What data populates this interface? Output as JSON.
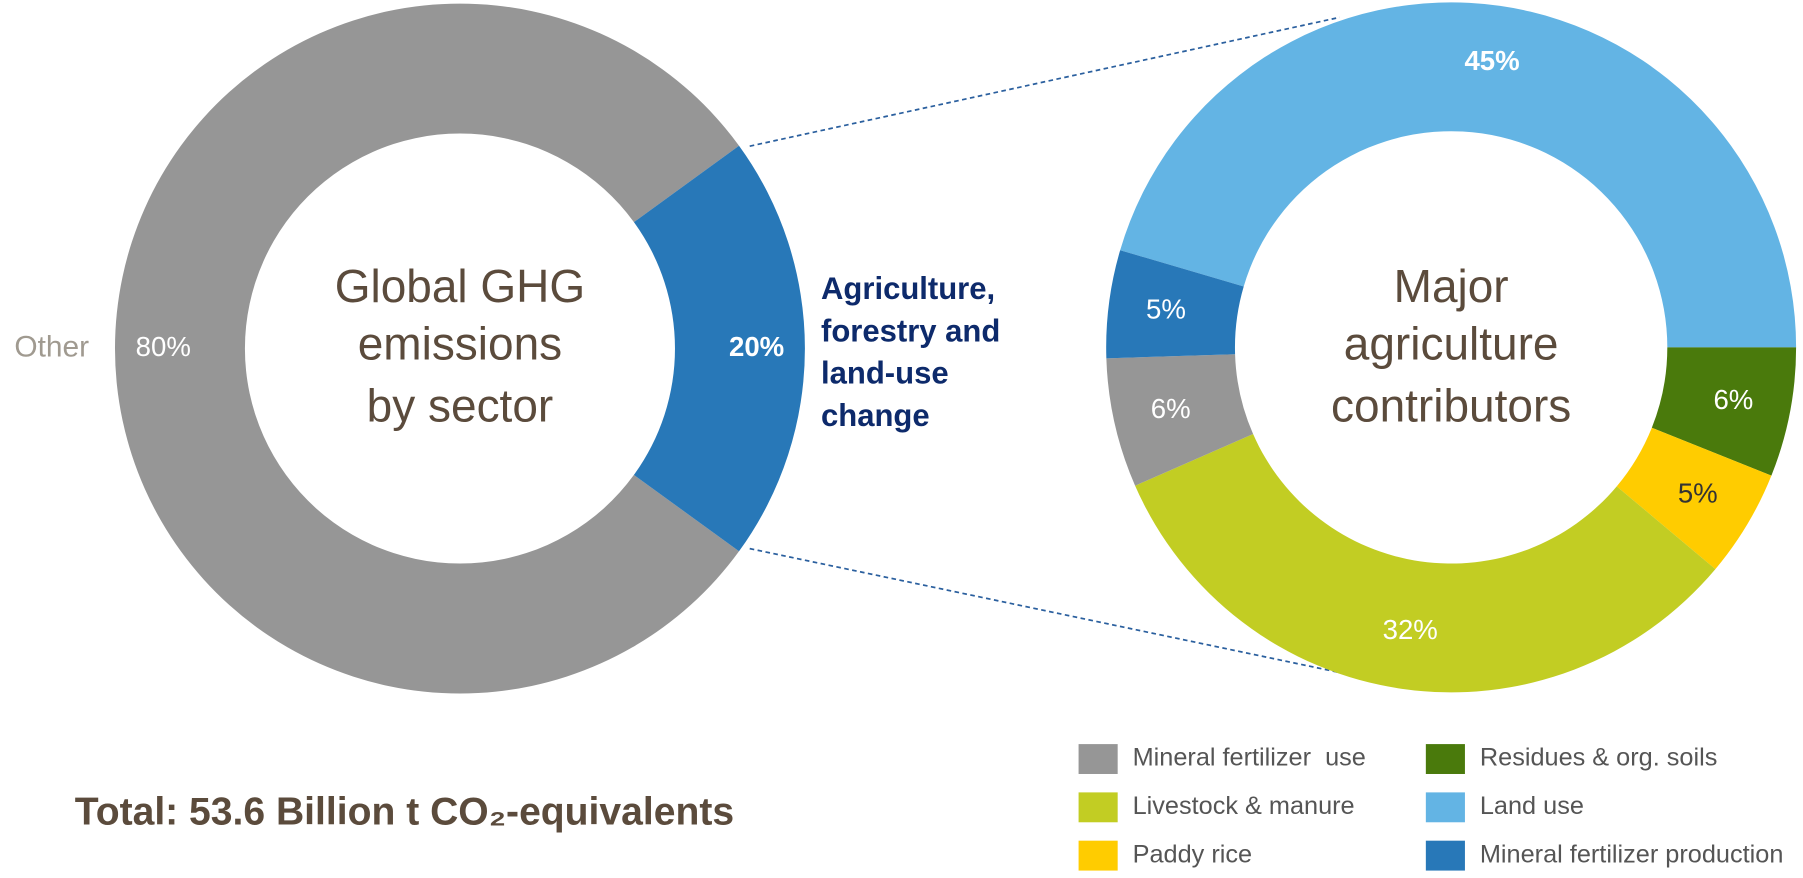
{
  "chart_data": [
    {
      "type": "pie",
      "title": [
        "Global GHG",
        "emissions",
        "by sector"
      ],
      "categories": [
        "Other",
        [
          "Agriculture,",
          "forestry and",
          "land-use",
          "change"
        ]
      ],
      "values": [
        80,
        20
      ],
      "value_labels": [
        "80%",
        "20%"
      ],
      "colors": [
        "#969696",
        "#2878b8"
      ]
    },
    {
      "type": "pie",
      "title": [
        "Major",
        "agriculture",
        "contributors"
      ],
      "series": [
        {
          "name": "Land use",
          "color": "#63b4e4",
          "values": [
            45
          ],
          "value_labels": [
            "45%"
          ]
        },
        {
          "name": "Residues & org. soils",
          "color": "#4a7a0c",
          "values": [
            6
          ],
          "value_labels": [
            "6%"
          ]
        },
        {
          "name": "Paddy rice",
          "color": "#ffcc00",
          "values": [
            5
          ],
          "value_labels": [
            "5%"
          ]
        },
        {
          "name": "Livestock & manure",
          "color": "#c2cd23",
          "values": [
            32
          ],
          "value_labels": [
            "32%"
          ]
        },
        {
          "name": "Mineral fertilizer  use",
          "color": "#969696",
          "values": [
            6
          ],
          "value_labels": [
            "6%"
          ]
        },
        {
          "name": "Mineral fertilizer production",
          "color": "#2878b8",
          "values": [
            5
          ],
          "value_labels": [
            "5%"
          ]
        }
      ]
    }
  ],
  "footnote": "Total: 53.6 Billion t CO₂-equivalents"
}
